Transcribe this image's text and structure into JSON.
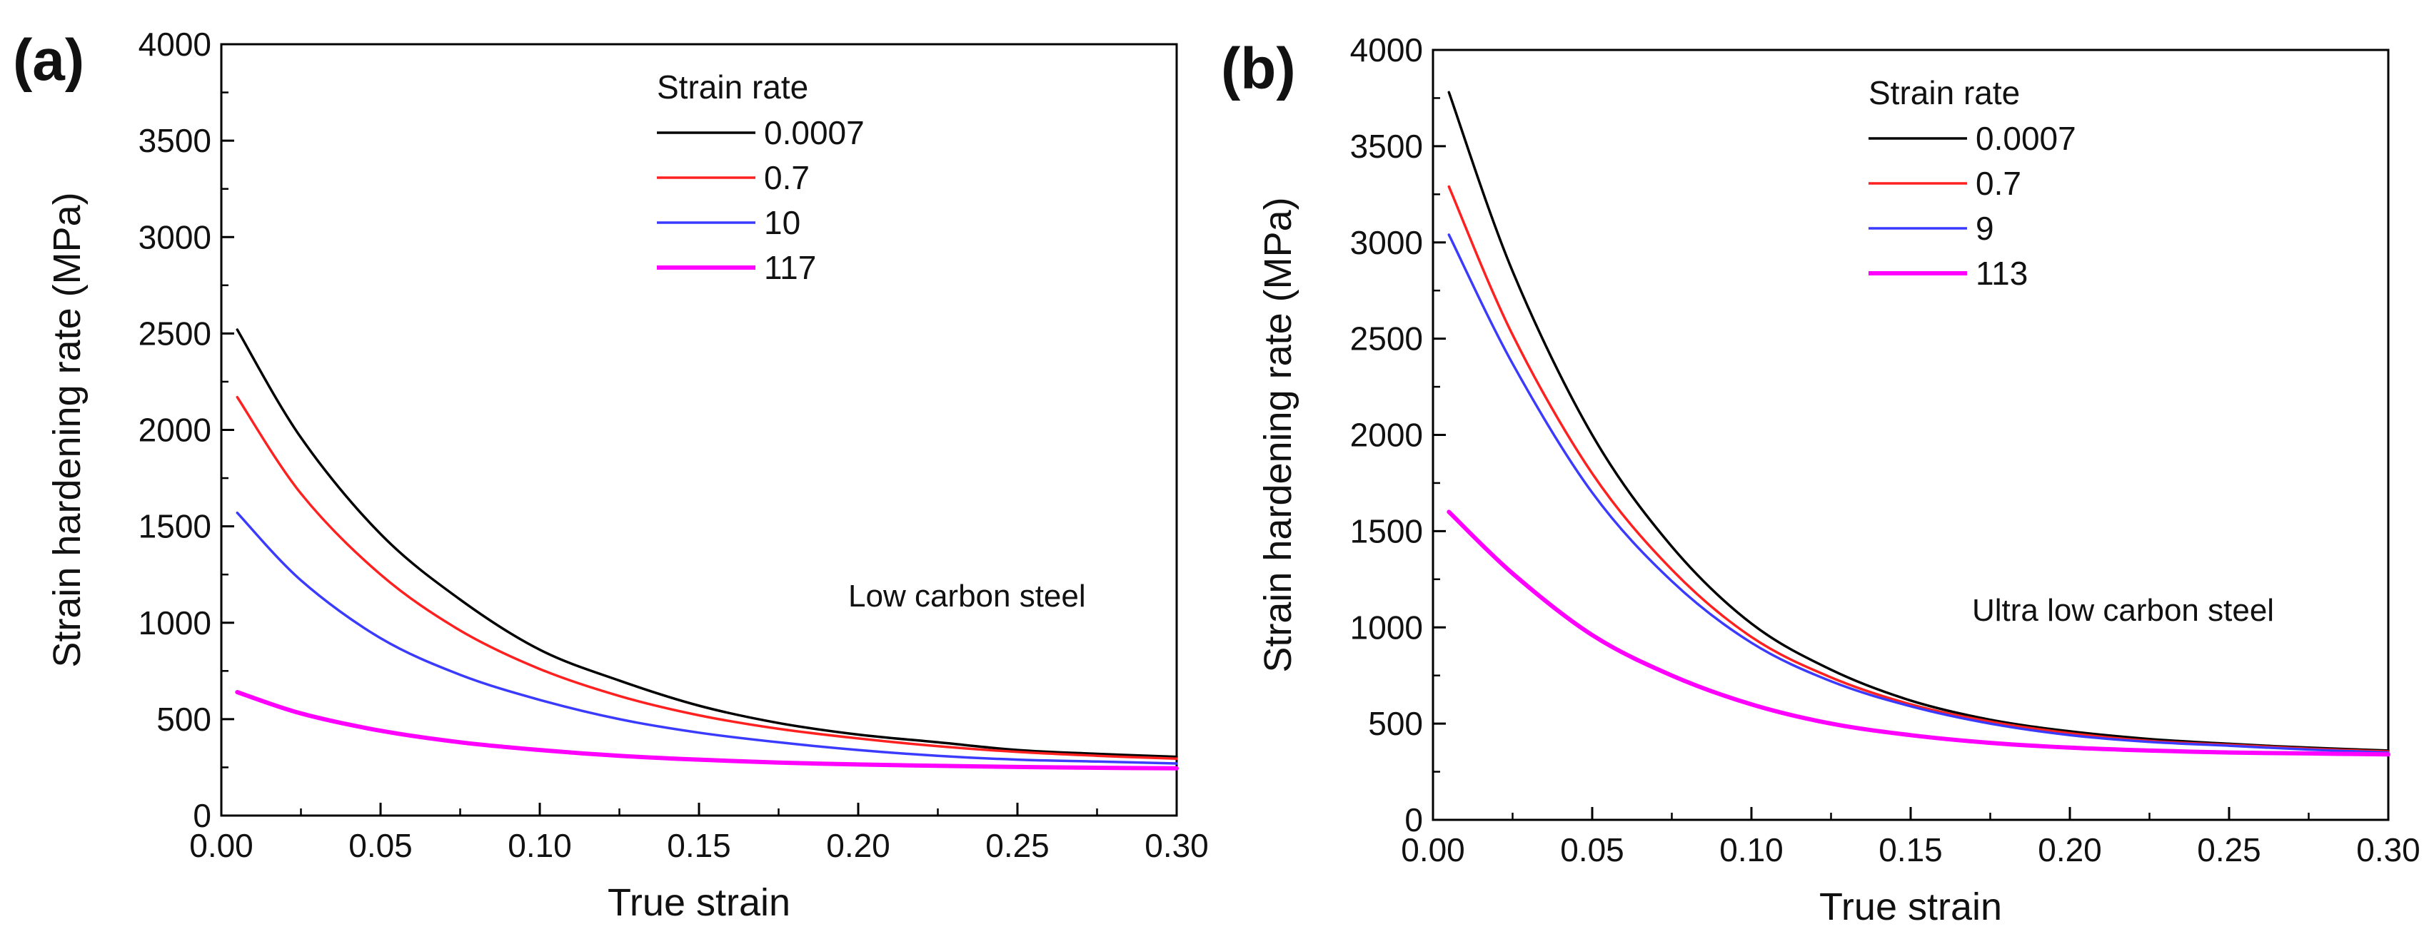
{
  "chart_data": [
    {
      "type": "line",
      "panel_label": "(a)",
      "title": "",
      "xlabel": "True strain",
      "ylabel": "Strain hardening rate (MPa)",
      "xlim": [
        0,
        0.3
      ],
      "ylim": [
        0,
        4000
      ],
      "xtick_labels": [
        "0.00",
        "0.05",
        "0.10",
        "0.15",
        "0.20",
        "0.25",
        "0.30"
      ],
      "ytick_labels": [
        "0",
        "500",
        "1000",
        "1500",
        "2000",
        "2500",
        "3000",
        "3500",
        "4000"
      ],
      "legend_title": "Strain rate",
      "legend_position": "top-center",
      "annotation": "Low carbon steel",
      "grid": false,
      "series": [
        {
          "name": "0.0007",
          "color": "#000000",
          "x": [
            0.005,
            0.025,
            0.05,
            0.075,
            0.1,
            0.125,
            0.15,
            0.175,
            0.2,
            0.225,
            0.25,
            0.275,
            0.3
          ],
          "values": [
            2520,
            1960,
            1460,
            1120,
            860,
            700,
            570,
            480,
            420,
            380,
            340,
            320,
            305
          ]
        },
        {
          "name": "0.7",
          "color": "#ff2020",
          "x": [
            0.005,
            0.025,
            0.05,
            0.075,
            0.1,
            0.125,
            0.15,
            0.175,
            0.2,
            0.225,
            0.25,
            0.275,
            0.3
          ],
          "values": [
            2170,
            1670,
            1250,
            960,
            760,
            620,
            520,
            450,
            400,
            360,
            330,
            310,
            295
          ]
        },
        {
          "name": "10",
          "color": "#3b3bff",
          "x": [
            0.005,
            0.025,
            0.05,
            0.075,
            0.1,
            0.125,
            0.15,
            0.175,
            0.2,
            0.225,
            0.25,
            0.275,
            0.3
          ],
          "values": [
            1570,
            1220,
            920,
            730,
            600,
            500,
            430,
            380,
            340,
            310,
            290,
            280,
            270
          ]
        },
        {
          "name": "117",
          "color": "#ff00ff",
          "x": [
            0.005,
            0.025,
            0.05,
            0.075,
            0.1,
            0.125,
            0.15,
            0.175,
            0.2,
            0.225,
            0.25,
            0.275,
            0.3
          ],
          "values": [
            640,
            530,
            440,
            380,
            340,
            310,
            290,
            275,
            265,
            258,
            252,
            248,
            245
          ]
        }
      ]
    },
    {
      "type": "line",
      "panel_label": "(b)",
      "title": "",
      "xlabel": "True strain",
      "ylabel": "Strain hardening rate (MPa)",
      "xlim": [
        0,
        0.3
      ],
      "ylim": [
        0,
        4000
      ],
      "xtick_labels": [
        "0.00",
        "0.05",
        "0.10",
        "0.15",
        "0.20",
        "0.25",
        "0.30"
      ],
      "ytick_labels": [
        "0",
        "500",
        "1000",
        "1500",
        "2000",
        "2500",
        "3000",
        "3500",
        "4000"
      ],
      "legend_title": "Strain rate",
      "legend_position": "top-center",
      "annotation": "Ultra low carbon steel",
      "grid": false,
      "series": [
        {
          "name": "0.0007",
          "color": "#000000",
          "x": [
            0.005,
            0.025,
            0.05,
            0.075,
            0.1,
            0.125,
            0.15,
            0.175,
            0.2,
            0.225,
            0.25,
            0.275,
            0.3
          ],
          "values": [
            3780,
            2850,
            2000,
            1420,
            1020,
            780,
            620,
            520,
            460,
            420,
            395,
            375,
            360
          ]
        },
        {
          "name": "0.7",
          "color": "#ff2020",
          "x": [
            0.005,
            0.025,
            0.05,
            0.075,
            0.1,
            0.125,
            0.15,
            0.175,
            0.2,
            0.225,
            0.25,
            0.275,
            0.3
          ],
          "values": [
            3290,
            2520,
            1800,
            1300,
            950,
            740,
            600,
            510,
            450,
            410,
            390,
            370,
            355
          ]
        },
        {
          "name": "9",
          "color": "#3b3bff",
          "x": [
            0.005,
            0.025,
            0.05,
            0.075,
            0.1,
            0.125,
            0.15,
            0.175,
            0.2,
            0.225,
            0.25,
            0.275,
            0.3
          ],
          "values": [
            3040,
            2370,
            1700,
            1240,
            920,
            720,
            590,
            500,
            440,
            405,
            385,
            365,
            350
          ]
        },
        {
          "name": "113",
          "color": "#ff00ff",
          "x": [
            0.005,
            0.025,
            0.05,
            0.075,
            0.1,
            0.125,
            0.15,
            0.175,
            0.2,
            0.225,
            0.25,
            0.275,
            0.3
          ],
          "values": [
            1600,
            1280,
            960,
            750,
            600,
            500,
            440,
            400,
            375,
            360,
            350,
            345,
            340
          ]
        }
      ]
    }
  ]
}
